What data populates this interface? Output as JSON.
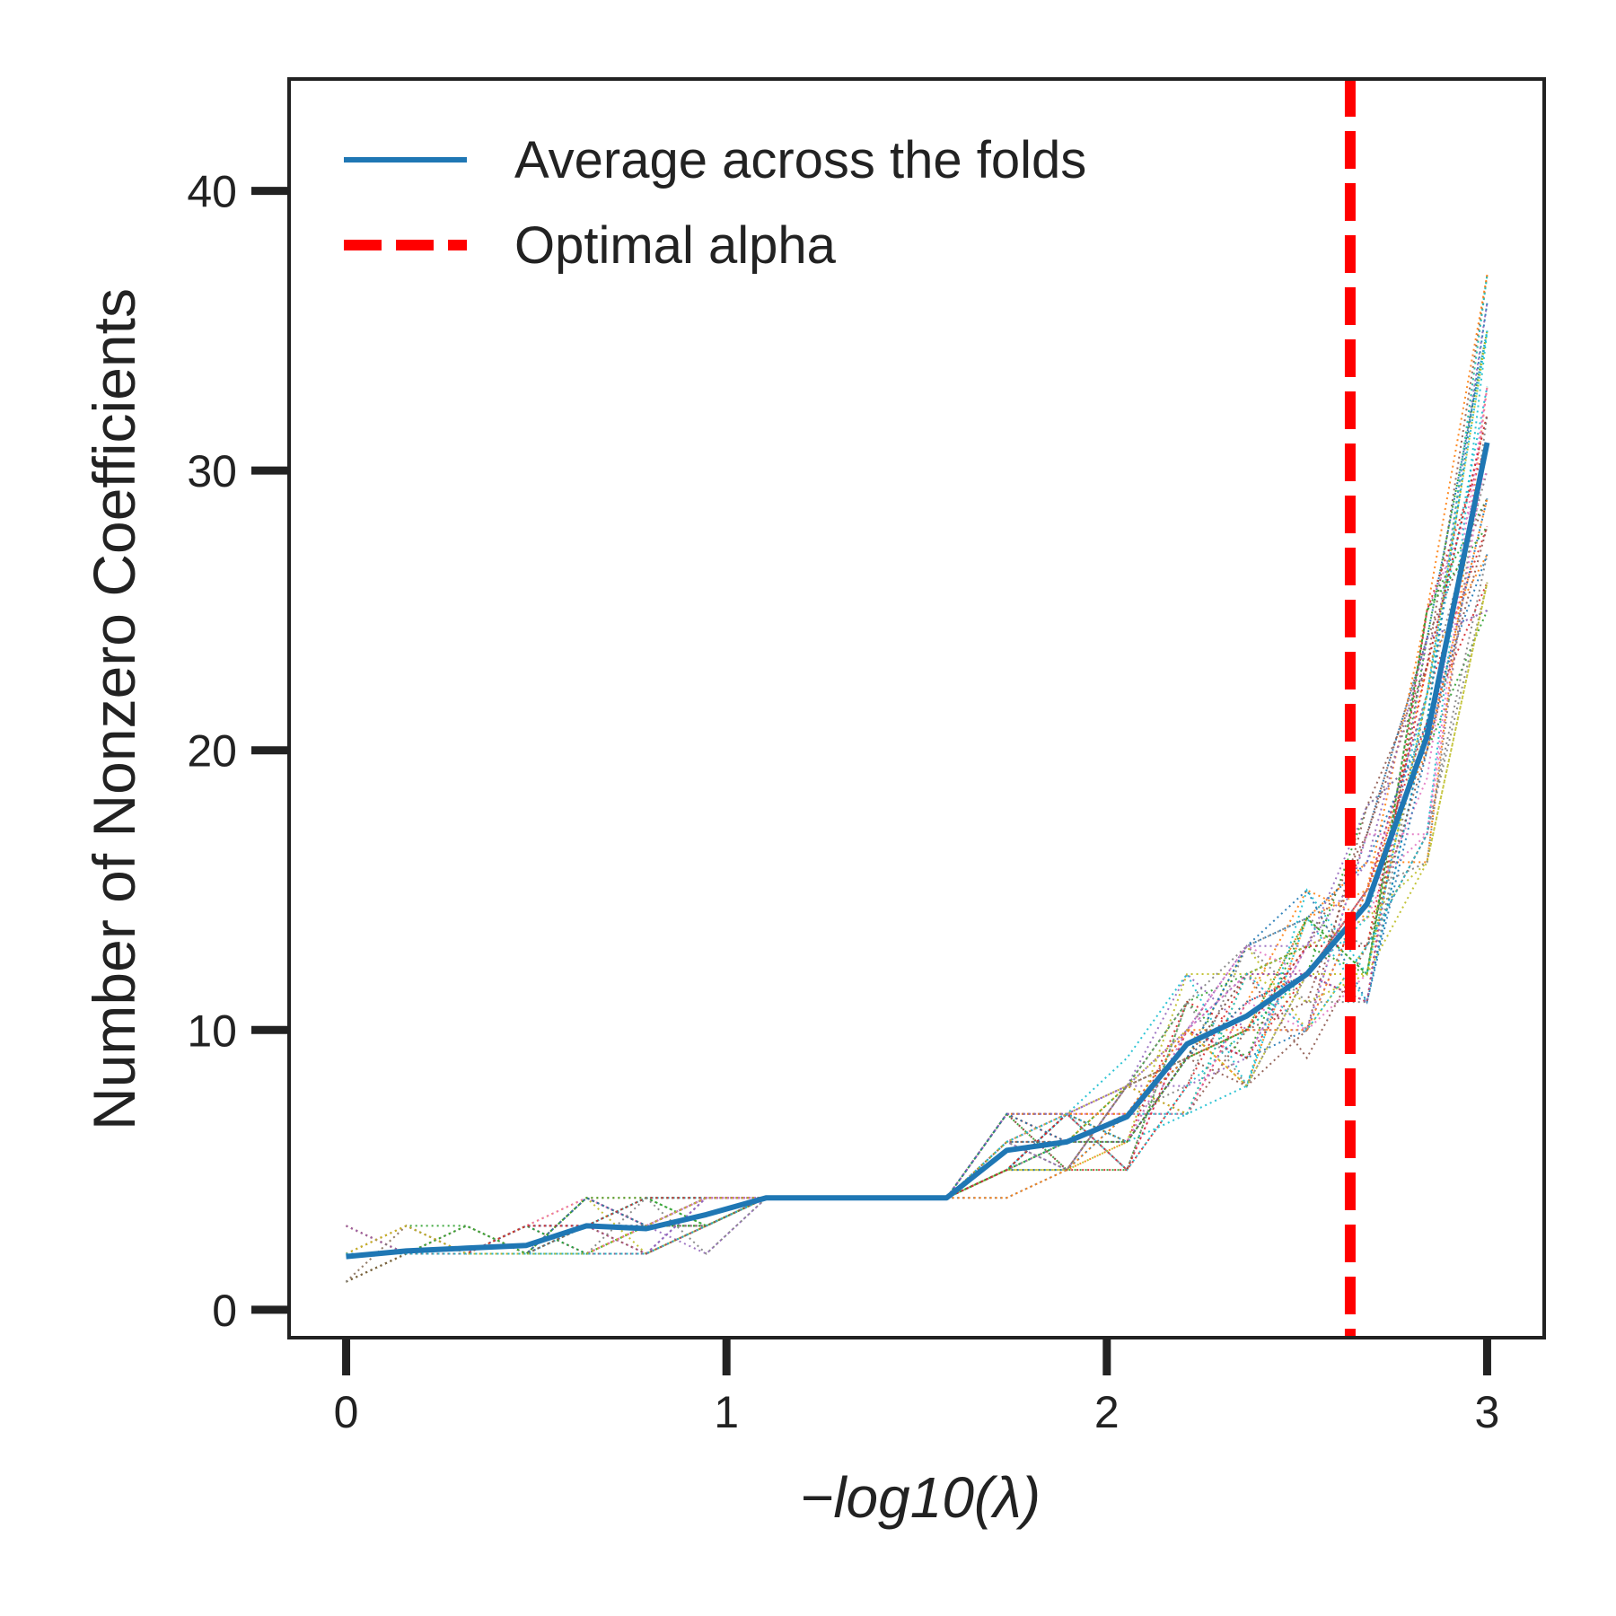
{
  "chart_data": {
    "type": "line",
    "xlabel": "−log10(λ)",
    "ylabel": "Number of Nonzero Coefficients",
    "xlim": [
      -0.15,
      3.15
    ],
    "ylim": [
      -1,
      44
    ],
    "xticks": [
      0,
      1,
      2,
      3
    ],
    "yticks": [
      0,
      10,
      20,
      30,
      40
    ],
    "grid": false,
    "legend_position": "top-left",
    "x": [
      0.0,
      0.158,
      0.316,
      0.474,
      0.632,
      0.789,
      0.947,
      1.105,
      1.263,
      1.421,
      1.579,
      1.737,
      1.895,
      2.053,
      2.211,
      2.368,
      2.526,
      2.684,
      2.842,
      3.0
    ],
    "series": [
      {
        "name": "Average across the folds",
        "color": "#1f77b4",
        "style": "solid",
        "values": [
          1.9,
          2.1,
          2.2,
          2.3,
          3.0,
          2.9,
          3.4,
          4.0,
          4.0,
          4.0,
          4.0,
          5.7,
          6.0,
          6.9,
          9.5,
          10.5,
          12.0,
          14.5,
          20.5,
          31.0
        ]
      }
    ],
    "fold_curves": {
      "style": "dotted",
      "count": 40,
      "colors": [
        "#1f77b4",
        "#ff7f0e",
        "#2ca02c",
        "#d62728",
        "#9467bd",
        "#8c564b",
        "#e377c2",
        "#7f7f7f",
        "#bcbd22",
        "#17becf"
      ],
      "spread": [
        0.9,
        0.6,
        0.6,
        0.6,
        1.3,
        1.0,
        1.0,
        0.5,
        0.2,
        0.2,
        0.2,
        1.4,
        1.4,
        1.9,
        2.4,
        2.7,
        3.0,
        3.6,
        4.8,
        6.5
      ]
    },
    "optimal_alpha": {
      "name": "Optimal alpha",
      "x": 2.64,
      "color": "#ff0000",
      "style": "dashed"
    }
  }
}
